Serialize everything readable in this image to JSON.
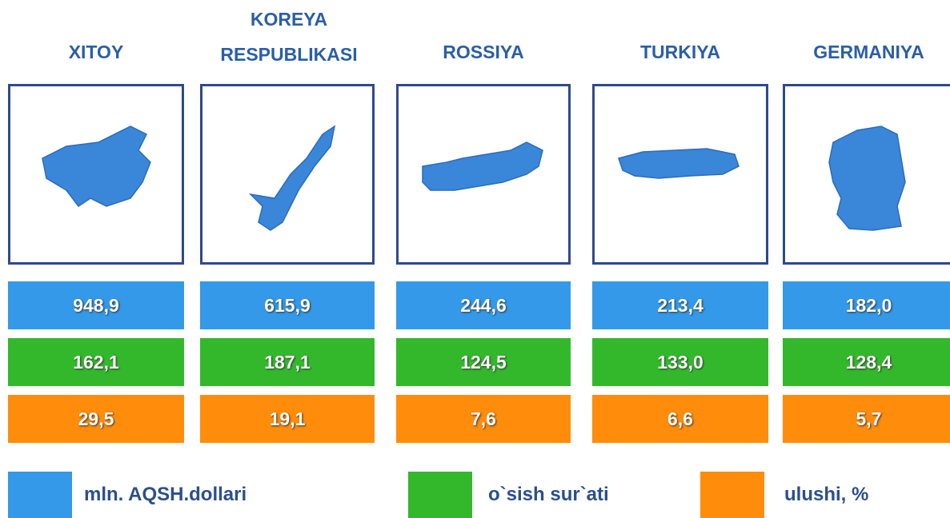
{
  "countries": [
    {
      "name": "XITOY",
      "value": "948,9",
      "growth": "162,1",
      "share": "29,5"
    },
    {
      "name": "KOREYA RESPUBLIKASI",
      "value": "615,9",
      "growth": "187,1",
      "share": "19,1"
    },
    {
      "name": "ROSSIYA",
      "value": "244,6",
      "growth": "124,5",
      "share": "7,6"
    },
    {
      "name": "TURKIYA",
      "value": "213,4",
      "growth": "133,0",
      "share": "6,6"
    },
    {
      "name": "GERMANIYA",
      "value": "182,0",
      "growth": "128,4",
      "share": "5,7"
    }
  ],
  "legend": [
    {
      "label": "mln. AQSH.dollari",
      "color": "#3399e8"
    },
    {
      "label": "o`sish sur`ati",
      "color": "#33b82c"
    },
    {
      "label": "ulushi, %",
      "color": "#ff8c0a"
    }
  ]
}
